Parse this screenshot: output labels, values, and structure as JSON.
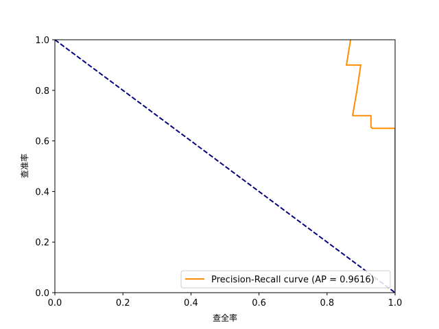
{
  "chart_data": {
    "type": "line",
    "xlabel": "查全率",
    "ylabel": "查准率",
    "xlim": [
      0,
      1
    ],
    "ylim": [
      0,
      1
    ],
    "x_ticks": [
      "0.0",
      "0.2",
      "0.4",
      "0.6",
      "0.8",
      "1.0"
    ],
    "y_ticks": [
      "0.0",
      "0.2",
      "0.4",
      "0.6",
      "0.8",
      "1.0"
    ],
    "grid": false,
    "legend_position": "lower-right",
    "series": [
      {
        "name": "Precision-Recall curve (AP = 0.9616)",
        "color": "#ff8c00",
        "style": "solid",
        "x": [
          0.869,
          0.857,
          0.857,
          0.899,
          0.888,
          0.875,
          0.874,
          0.929,
          0.929,
          0.933,
          1.0,
          1.0,
          1.0
        ],
        "y": [
          1.0,
          0.9,
          0.9,
          0.9,
          0.8,
          0.7,
          0.7,
          0.7,
          0.655,
          0.65,
          0.65,
          0.65,
          0.0
        ]
      },
      {
        "color": "#000080",
        "style": "dashed",
        "x": [
          0,
          1
        ],
        "y": [
          1,
          0
        ]
      }
    ]
  }
}
